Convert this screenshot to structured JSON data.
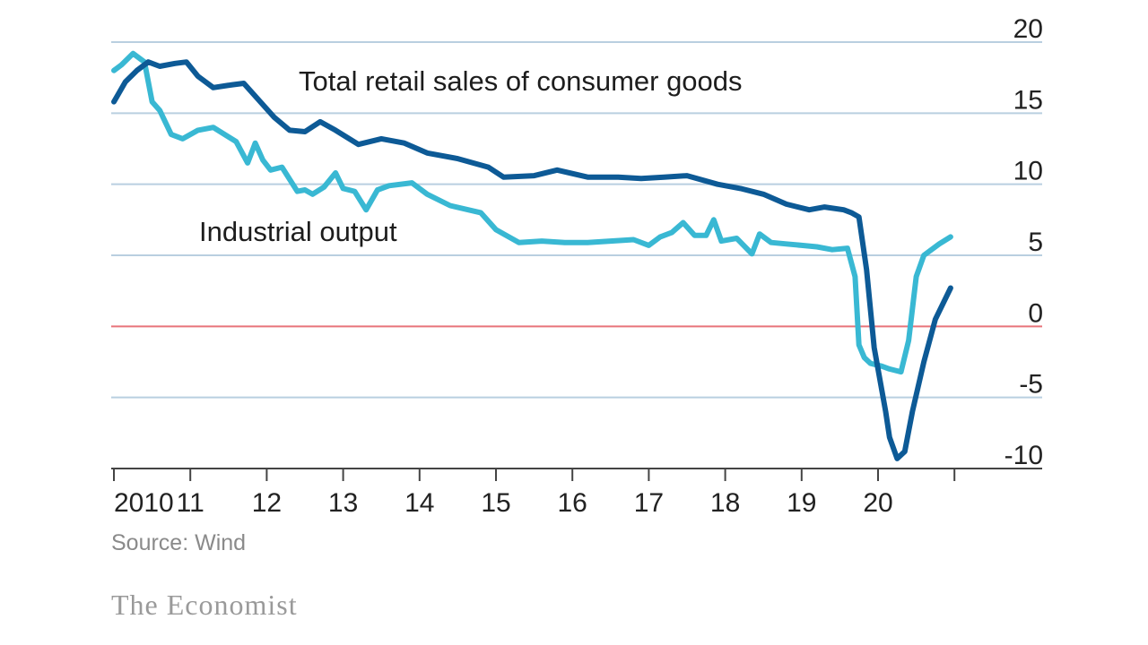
{
  "chart_data": {
    "type": "line",
    "title": "",
    "xlabel": "",
    "ylabel": "",
    "xlim": [
      2010.0,
      2021.0
    ],
    "ylim": [
      -10,
      20
    ],
    "yticks": [
      20,
      15,
      10,
      5,
      0,
      -5,
      -10
    ],
    "ytick_labels": [
      "20",
      "15",
      "10",
      "5",
      "0",
      "-5",
      "-10"
    ],
    "xticks": [
      2010,
      2011,
      2012,
      2013,
      2014,
      2015,
      2016,
      2017,
      2018,
      2019,
      2020
    ],
    "xtick_labels": [
      "2010",
      "11",
      "12",
      "13",
      "14",
      "15",
      "16",
      "17",
      "18",
      "19",
      "20"
    ],
    "zero_line_color": "#e8747a",
    "grid_color": "#b9cfe0",
    "series": [
      {
        "name": "Total retail sales of consumer goods",
        "color": "#0d5a96",
        "label_position": "upper-middle",
        "x": [
          2010.0,
          2010.15,
          2010.3,
          2010.45,
          2010.6,
          2010.8,
          2010.95,
          2011.1,
          2011.3,
          2011.55,
          2011.7,
          2011.9,
          2012.1,
          2012.3,
          2012.5,
          2012.7,
          2012.9,
          2013.2,
          2013.5,
          2013.8,
          2014.1,
          2014.5,
          2014.9,
          2015.1,
          2015.5,
          2015.8,
          2016.2,
          2016.6,
          2016.9,
          2017.2,
          2017.5,
          2017.9,
          2018.2,
          2018.5,
          2018.8,
          2019.1,
          2019.3,
          2019.55,
          2019.65,
          2019.75,
          2019.85,
          2019.95,
          2020.1,
          2020.15,
          2020.25,
          2020.35,
          2020.45,
          2020.6,
          2020.75,
          2020.95
        ],
        "values": [
          15.8,
          17.2,
          18.0,
          18.6,
          18.3,
          18.5,
          18.6,
          17.6,
          16.8,
          17.0,
          17.1,
          15.9,
          14.7,
          13.8,
          13.7,
          14.4,
          13.8,
          12.8,
          13.2,
          12.9,
          12.2,
          11.8,
          11.2,
          10.5,
          10.6,
          11.0,
          10.5,
          10.5,
          10.4,
          10.5,
          10.6,
          10.0,
          9.7,
          9.3,
          8.6,
          8.2,
          8.4,
          8.2,
          8.0,
          7.7,
          4.0,
          -1.5,
          -6.0,
          -7.8,
          -9.3,
          -8.8,
          -6.0,
          -2.5,
          0.5,
          2.7
        ]
      },
      {
        "name": "Industrial output",
        "color": "#39b8d3",
        "label_position": "middle-left",
        "x": [
          2010.0,
          2010.1,
          2010.25,
          2010.4,
          2010.5,
          2010.6,
          2010.75,
          2010.9,
          2011.1,
          2011.3,
          2011.6,
          2011.75,
          2011.85,
          2011.95,
          2012.05,
          2012.2,
          2012.4,
          2012.5,
          2012.6,
          2012.75,
          2012.9,
          2013.0,
          2013.15,
          2013.3,
          2013.45,
          2013.6,
          2013.9,
          2014.1,
          2014.4,
          2014.8,
          2015.0,
          2015.3,
          2015.6,
          2015.9,
          2016.2,
          2016.5,
          2016.8,
          2017.0,
          2017.15,
          2017.3,
          2017.45,
          2017.6,
          2017.75,
          2017.85,
          2017.95,
          2018.15,
          2018.35,
          2018.45,
          2018.6,
          2018.8,
          2019.0,
          2019.2,
          2019.4,
          2019.6,
          2019.7,
          2019.75,
          2019.82,
          2019.9,
          2020.05,
          2020.15,
          2020.3,
          2020.4,
          2020.5,
          2020.6,
          2020.8,
          2020.95
        ],
        "values": [
          18.0,
          18.4,
          19.2,
          18.6,
          15.8,
          15.2,
          13.5,
          13.2,
          13.8,
          14.0,
          13.0,
          11.5,
          12.9,
          11.7,
          11.0,
          11.2,
          9.5,
          9.6,
          9.3,
          9.8,
          10.8,
          9.7,
          9.5,
          8.2,
          9.6,
          9.9,
          10.1,
          9.3,
          8.5,
          8.0,
          6.8,
          5.9,
          6.0,
          5.9,
          5.9,
          6.0,
          6.1,
          5.7,
          6.3,
          6.6,
          7.3,
          6.4,
          6.4,
          7.5,
          6.0,
          6.2,
          5.1,
          6.5,
          5.9,
          5.8,
          5.7,
          5.6,
          5.4,
          5.5,
          3.5,
          -1.3,
          -2.2,
          -2.6,
          -2.8,
          -3.0,
          -3.2,
          -1.0,
          3.5,
          5.0,
          5.8,
          6.3
        ]
      }
    ]
  },
  "labels": {
    "retail": "Total retail sales of consumer goods",
    "industrial": "Industrial output"
  },
  "footer": {
    "source": "Source: Wind",
    "brand": "The Economist"
  }
}
